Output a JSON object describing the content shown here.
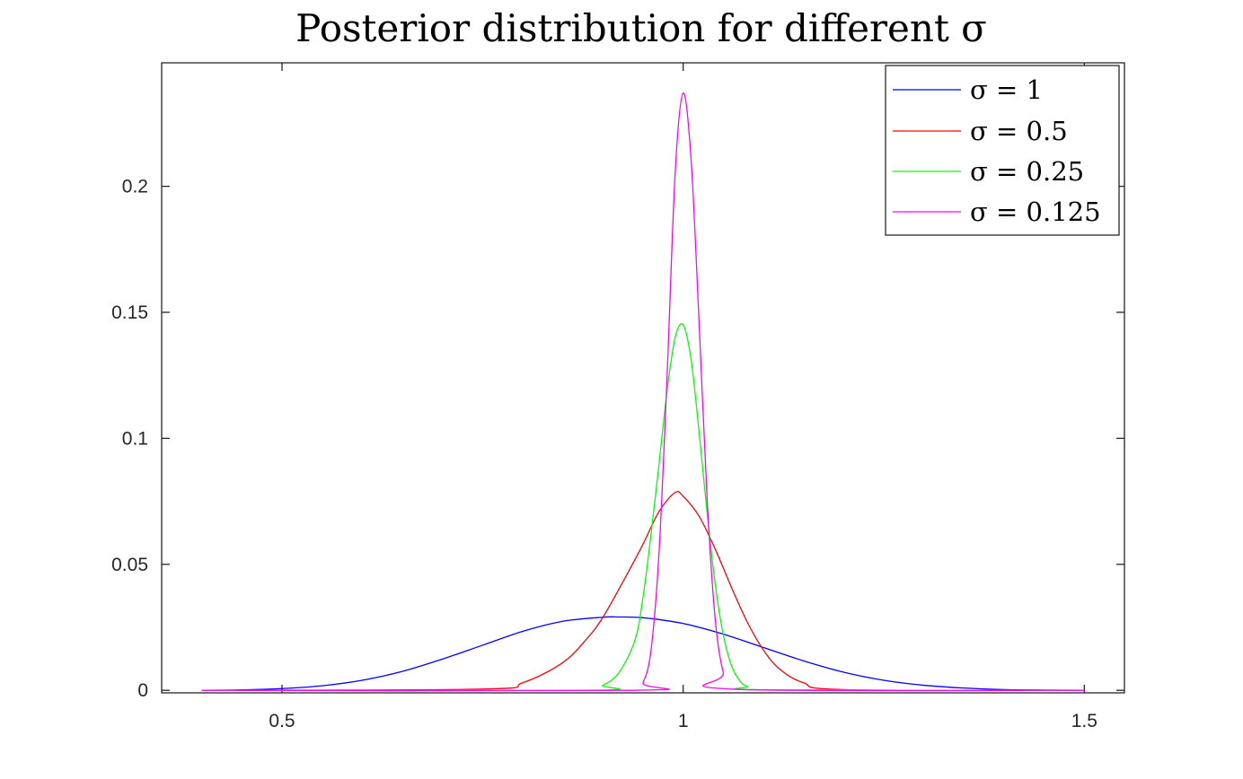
{
  "chart_data": {
    "type": "line",
    "title": "Posterior distribution for different σ",
    "xlabel": "",
    "ylabel": "",
    "xlim": [
      0.35,
      1.55
    ],
    "ylim": [
      -0.001,
      0.249
    ],
    "xticks": [
      0.5,
      1,
      1.5
    ],
    "xtick_labels": [
      "0.5",
      "1",
      "1.5"
    ],
    "yticks": [
      0,
      0.05,
      0.1,
      0.15,
      0.2
    ],
    "ytick_labels": [
      "0",
      "0.05",
      "0.1",
      "0.15",
      "0.2"
    ],
    "grid": false,
    "box": true,
    "legend_position": "top-right",
    "series": [
      {
        "name": "σ = 1",
        "color": "#0000ff",
        "x": [
          0.4,
          0.45,
          0.5,
          0.55,
          0.6,
          0.65,
          0.7,
          0.75,
          0.8,
          0.85,
          0.9,
          0.92,
          0.95,
          1.0,
          1.05,
          1.1,
          1.15,
          1.2,
          1.25,
          1.3,
          1.35,
          1.4,
          1.45,
          1.5
        ],
        "y": [
          0.0,
          0.0002,
          0.0007,
          0.0018,
          0.004,
          0.0075,
          0.0124,
          0.0179,
          0.0234,
          0.0274,
          0.029,
          0.0291,
          0.0288,
          0.0265,
          0.0223,
          0.017,
          0.0117,
          0.0072,
          0.004,
          0.002,
          0.0009,
          0.0003,
          0.0001,
          0.0
        ]
      },
      {
        "name": "σ = 0.5",
        "color": "#ff0000",
        "x": [
          0.4,
          0.75,
          0.8,
          0.85,
          0.88,
          0.9,
          0.93,
          0.95,
          0.97,
          0.99,
          1.0,
          1.02,
          1.04,
          1.06,
          1.08,
          1.1,
          1.12,
          1.15,
          1.2,
          1.5
        ],
        "y": [
          0.0,
          0.0005,
          0.003,
          0.011,
          0.0205,
          0.029,
          0.046,
          0.058,
          0.071,
          0.0785,
          0.077,
          0.069,
          0.056,
          0.041,
          0.027,
          0.016,
          0.0085,
          0.003,
          0.0003,
          0.0
        ]
      },
      {
        "name": "σ = 0.25",
        "color": "#00ff00",
        "x": [
          0.4,
          0.88,
          0.9,
          0.92,
          0.94,
          0.95,
          0.96,
          0.97,
          0.98,
          0.99,
          1.0,
          1.01,
          1.02,
          1.03,
          1.04,
          1.05,
          1.06,
          1.07,
          1.08,
          1.1,
          1.5
        ],
        "y": [
          0.0,
          0.0,
          0.002,
          0.007,
          0.02,
          0.037,
          0.062,
          0.09,
          0.119,
          0.14,
          0.145,
          0.131,
          0.102,
          0.07,
          0.042,
          0.022,
          0.01,
          0.004,
          0.0015,
          0.0002,
          0.0
        ]
      },
      {
        "name": "σ = 0.125",
        "color": "#ff00ff",
        "x": [
          0.4,
          0.94,
          0.95,
          0.96,
          0.97,
          0.98,
          0.99,
          1.0,
          1.01,
          1.02,
          1.03,
          1.04,
          1.05,
          1.06,
          1.5
        ],
        "y": [
          0.0,
          0.0,
          0.003,
          0.016,
          0.055,
          0.125,
          0.205,
          0.237,
          0.21,
          0.145,
          0.075,
          0.028,
          0.007,
          0.0005,
          0.0
        ]
      }
    ]
  }
}
